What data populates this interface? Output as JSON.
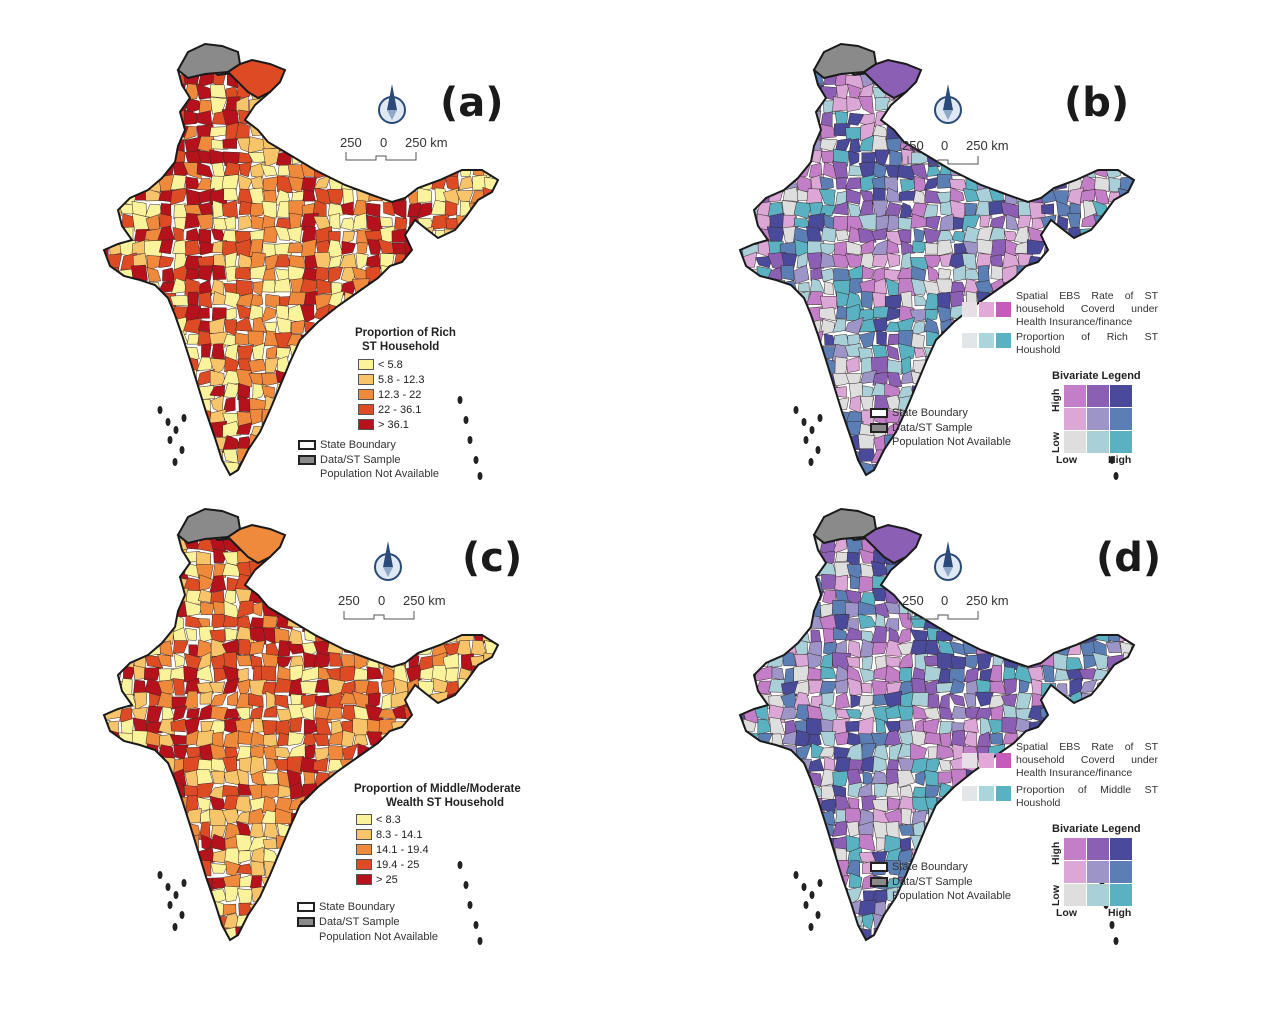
{
  "panels": {
    "a": {
      "label": "(a)",
      "legend_title_1": "Proportion of Rich",
      "legend_title_2": "ST Household",
      "classes": [
        {
          "label": "< 5.8",
          "color": "#fbf29c"
        },
        {
          "label": "5.8 - 12.3",
          "color": "#f8c46a"
        },
        {
          "label": "12.3 - 22",
          "color": "#ef8a3c"
        },
        {
          "label": "22 - 36.1",
          "color": "#dd4b25"
        },
        {
          "label": "> 36.1",
          "color": "#b5121b"
        }
      ]
    },
    "b": {
      "label": "(b)",
      "desc_1": "Spatial EBS Rate of ST household Coverd under Health Insurance/finance",
      "desc_2": "Proportion of Rich ST Houshold"
    },
    "c": {
      "label": "(c)",
      "legend_title_1": "Proportion of Middle/Moderate",
      "legend_title_2": "Wealth ST Household",
      "classes": [
        {
          "label": "< 8.3",
          "color": "#fbf29c"
        },
        {
          "label": "8.3 - 14.1",
          "color": "#f8c46a"
        },
        {
          "label": "14.1 - 19.4",
          "color": "#ef8a3c"
        },
        {
          "label": "19.4 - 25",
          "color": "#dd4b25"
        },
        {
          "label": "> 25",
          "color": "#b5121b"
        }
      ]
    },
    "d": {
      "label": "(d)",
      "desc_1": "Spatial EBS Rate of ST household Coverd under Health Insurance/finance",
      "desc_2": "Proportion of Middle ST Houshold"
    }
  },
  "common": {
    "scale_left": "250",
    "scale_zero": "0",
    "scale_right": "250 km",
    "state_boundary": "State Boundary",
    "na_line1": "Data/ST Sample",
    "na_line2": "Population Not Available",
    "biv_title": "Bivariate Legend",
    "biv_high": "High",
    "biv_low": "Low",
    "biv_x_low": "Low",
    "biv_x_high": "High"
  },
  "colors": {
    "na_gray": "#8a8a8a",
    "pink_strip": [
      "#e6e0e6",
      "#e3a9d6",
      "#c75bbb"
    ],
    "teal_strip": [
      "#e3e6e8",
      "#a9d5dd",
      "#5ab1c2"
    ],
    "biv_grid": [
      [
        "#c27fc7",
        "#8b5fb3",
        "#4a4a9a"
      ],
      [
        "#dba7d6",
        "#9d95c8",
        "#5b7fb5"
      ],
      [
        "#dedede",
        "#a9cfd8",
        "#5ab1c2"
      ]
    ],
    "choropleth": [
      "#fbf29c",
      "#f8c46a",
      "#ef8a3c",
      "#dd4b25",
      "#b5121b"
    ],
    "bivariate_fill": [
      "#c27fc7",
      "#8b5fb3",
      "#4a4a9a",
      "#dba7d6",
      "#9d95c8",
      "#5b7fb5",
      "#dedede",
      "#a9cfd8",
      "#5ab1c2"
    ]
  }
}
